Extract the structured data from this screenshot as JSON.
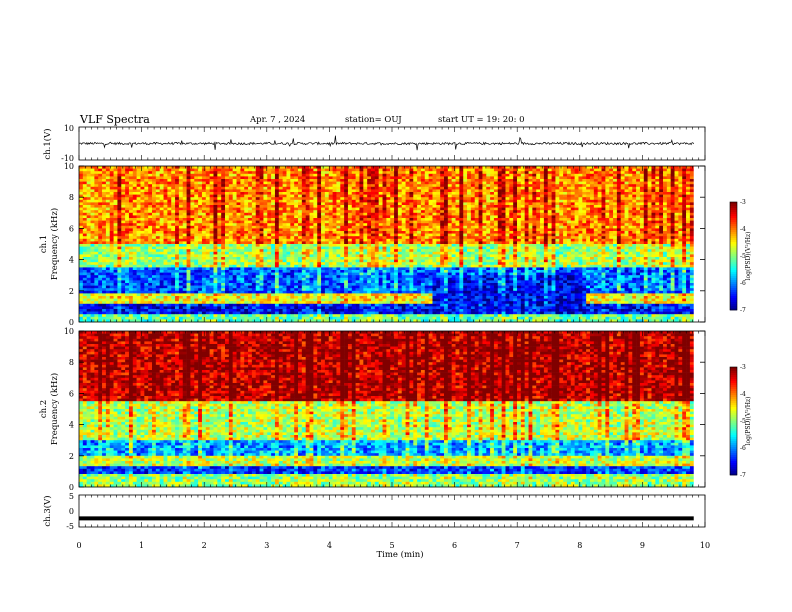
{
  "header": {
    "title": "VLF Spectra",
    "date": "Apr. 7 , 2024",
    "station": "station= OUJ",
    "start": "start  UT =   19: 20: 0"
  },
  "chart_data": [
    {
      "type": "line",
      "panel": "ch1-waveform",
      "ylabel": "ch.1(V)",
      "ylim": [
        -10,
        10
      ],
      "yticks": [
        "10",
        "-10"
      ],
      "xlim": [
        0,
        10
      ],
      "baseline": 0,
      "description_level": "noisy trace near 0 V with spikes up to ~5 V and down to ~-5 V"
    },
    {
      "type": "heatmap",
      "panel": "ch1-spectrogram",
      "ylabel": "ch.1\nFrequency (kHz)",
      "ylabel_lines": [
        "ch.1",
        "Frequency (kHz)"
      ],
      "ylim": [
        0,
        10
      ],
      "yticks": [
        "0",
        "2",
        "4",
        "6",
        "8",
        "10"
      ],
      "xlim": [
        0,
        10
      ],
      "colorbar": {
        "label": "log(PSD)(V²/Hz)",
        "ticks": [
          "-3",
          "-4",
          "-5",
          "-6",
          "-7"
        ],
        "range": [
          -7,
          -3
        ]
      },
      "bands": [
        {
          "f_lo": 0.0,
          "f_hi": 0.5,
          "level": -5.2
        },
        {
          "f_lo": 0.5,
          "f_hi": 1.2,
          "level": -6.6
        },
        {
          "f_lo": 1.2,
          "f_hi": 1.8,
          "level": -4.6
        },
        {
          "f_lo": 1.8,
          "f_hi": 3.5,
          "level": -6.3
        },
        {
          "f_lo": 3.5,
          "f_hi": 5.0,
          "level": -5.0
        },
        {
          "f_lo": 5.0,
          "f_hi": 10.0,
          "level": -4.2
        }
      ],
      "gap_minutes": [
        5.65,
        8.1
      ]
    },
    {
      "type": "heatmap",
      "panel": "ch2-spectrogram",
      "ylabel": "ch.2\nFrequency (kHz)",
      "ylabel_lines": [
        "ch.2",
        "Frequency (kHz)"
      ],
      "ylim": [
        0,
        10
      ],
      "yticks": [
        "0",
        "2",
        "4",
        "6",
        "8",
        "10"
      ],
      "xlim": [
        0,
        10
      ],
      "colorbar": {
        "label": "log(PSD)(V²/Hz)",
        "ticks": [
          "-3",
          "-4",
          "-5",
          "-6",
          "-7"
        ],
        "range": [
          -7,
          -3
        ]
      },
      "bands": [
        {
          "f_lo": 0.0,
          "f_hi": 0.8,
          "level": -5.0
        },
        {
          "f_lo": 0.8,
          "f_hi": 1.3,
          "level": -6.4
        },
        {
          "f_lo": 1.3,
          "f_hi": 2.0,
          "level": -4.8
        },
        {
          "f_lo": 2.0,
          "f_hi": 3.0,
          "level": -6.0
        },
        {
          "f_lo": 3.0,
          "f_hi": 5.5,
          "level": -4.9
        },
        {
          "f_lo": 5.5,
          "f_hi": 10.0,
          "level": -3.4
        }
      ]
    },
    {
      "type": "line",
      "panel": "ch3-waveform",
      "ylabel": "ch.3(V)",
      "ylim": [
        -5,
        5
      ],
      "yticks": [
        "5",
        "0",
        "-5"
      ],
      "xlim": [
        0,
        10
      ],
      "level": -2.3
    }
  ],
  "xaxis": {
    "label": "Time  (min)",
    "ticks": [
      "0",
      "1",
      "2",
      "3",
      "4",
      "5",
      "6",
      "7",
      "8",
      "9",
      "10"
    ],
    "data_end": 9.82
  }
}
